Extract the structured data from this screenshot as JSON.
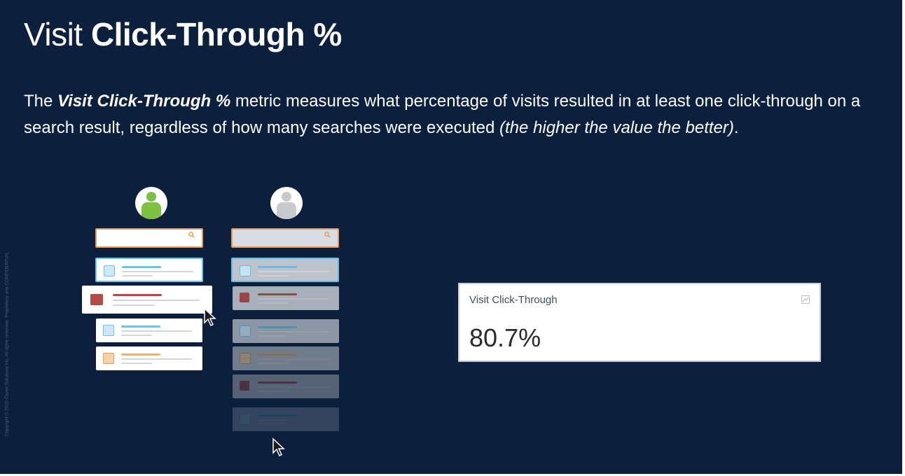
{
  "slide": {
    "title_light": "Visit",
    "title_bold": "Click-Through %",
    "description": {
      "lead": "The ",
      "metric": "Visit Click-Through %",
      "body": " metric measures what percentage of visits resulted in at least one click-through on a search result, regardless of how many searches were executed ",
      "aside": "(the higher the value the better)",
      "end": "."
    },
    "copyright": "Copyright © 2020 Coveo Solutions Inc. All rights reserved. Proprietary and CONFIDENTIAL"
  },
  "illustration": {
    "icons": [
      "user-icon",
      "search-icon",
      "link-icon",
      "video-icon",
      "document-icon",
      "cursor-icon",
      "click-burst-icon"
    ],
    "colors": {
      "accent_blue": "#6cc3ea",
      "accent_red": "#b44b46",
      "accent_orange": "#e39a5a",
      "user_active": "#7cc142",
      "user_inactive": "#c7c9cc"
    }
  },
  "widget": {
    "label": "Visit Click-Through",
    "value": "80.7%",
    "icon": "chart-settings-icon"
  },
  "colors": {
    "background": "#0c1f3c",
    "text": "#ffffff"
  }
}
